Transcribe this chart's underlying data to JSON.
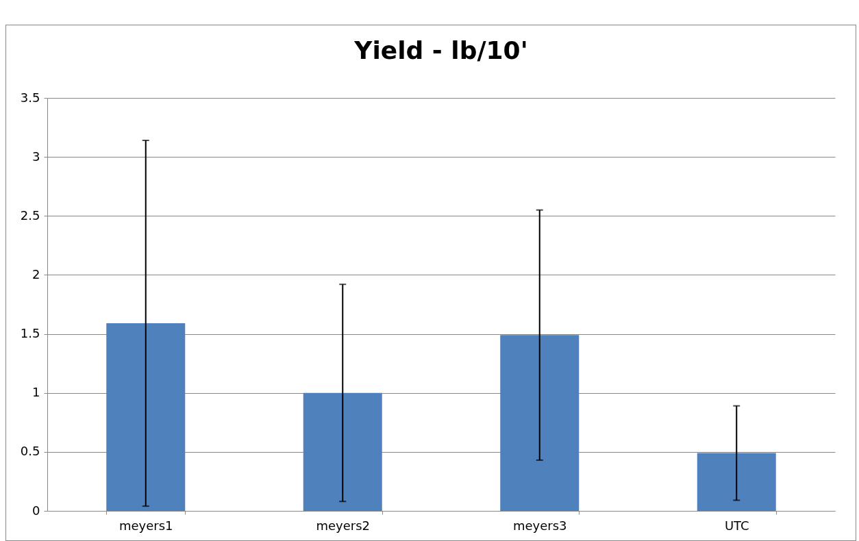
{
  "chart_data": {
    "type": "bar",
    "title": "Yield - lb/10'",
    "categories": [
      "meyers1",
      "meyers2",
      "meyers3",
      "UTC"
    ],
    "values": [
      1.59,
      1.0,
      1.49,
      0.49
    ],
    "errors": [
      1.55,
      0.92,
      1.06,
      0.4
    ],
    "color": "#4f81bd",
    "ylim": [
      0,
      3.5
    ],
    "yticks": [
      0,
      0.5,
      1,
      1.5,
      2,
      2.5,
      3,
      3.5
    ],
    "grid": "y"
  }
}
